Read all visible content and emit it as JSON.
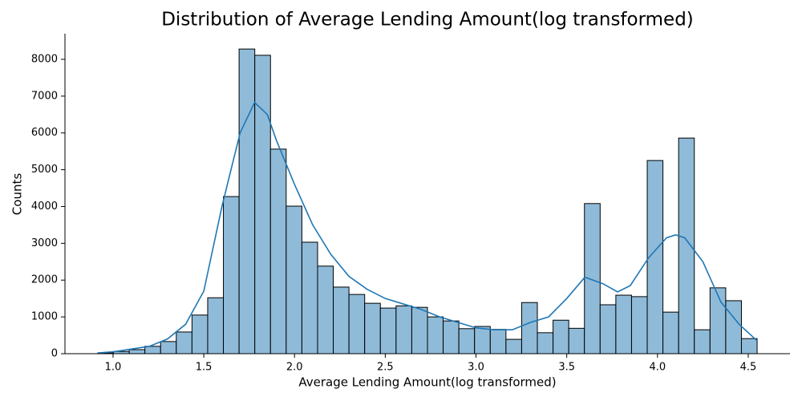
{
  "chart_data": {
    "type": "histogram",
    "title": "Distribution of Average Lending Amount(log transformed)",
    "x_label": "Average Lending Amount(log transformed)",
    "y_label": "Counts",
    "bins": [
      0.916,
      1.0025,
      1.089,
      1.1755,
      1.262,
      1.3485,
      1.435,
      1.5215,
      1.608,
      1.6945,
      1.781,
      1.8675,
      1.954,
      2.0405,
      2.127,
      2.2135,
      2.3,
      2.3865,
      2.473,
      2.5595,
      2.646,
      2.7325,
      2.819,
      2.9055,
      2.992,
      3.0785,
      3.165,
      3.2515,
      3.338,
      3.4245,
      3.511,
      3.5975,
      3.684,
      3.7705,
      3.857,
      3.9435,
      4.03,
      4.1165,
      4.203,
      4.2895,
      4.376,
      4.4625,
      4.549
    ],
    "values": [
      20,
      60,
      110,
      200,
      330,
      590,
      1050,
      1520,
      4270,
      8280,
      8110,
      5560,
      4010,
      3030,
      2380,
      1810,
      1610,
      1370,
      1240,
      1300,
      1260,
      1000,
      890,
      680,
      740,
      660,
      390,
      1390,
      570,
      910,
      690,
      4080,
      1330,
      1590,
      1550,
      5250,
      1130,
      5860,
      650,
      1790,
      1440,
      410
    ],
    "color": "#8fbbd9",
    "edge_color": "#000000",
    "kde": {
      "color": "#1f77b4",
      "x": [
        0.916,
        1.0,
        1.2,
        1.3,
        1.4,
        1.5,
        1.6,
        1.7,
        1.78,
        1.85,
        1.9,
        2.0,
        2.1,
        2.2,
        2.3,
        2.4,
        2.5,
        2.6,
        2.7,
        2.8,
        2.9,
        3.0,
        3.1,
        3.2,
        3.3,
        3.4,
        3.5,
        3.6,
        3.7,
        3.78,
        3.85,
        3.95,
        4.05,
        4.1,
        4.15,
        4.25,
        4.35,
        4.45,
        4.549
      ],
      "values": [
        20,
        50,
        200,
        400,
        800,
        1700,
        4000,
        6000,
        6830,
        6500,
        5800,
        4600,
        3500,
        2700,
        2100,
        1750,
        1500,
        1350,
        1200,
        1000,
        850,
        700,
        650,
        650,
        850,
        1000,
        1500,
        2080,
        1900,
        1680,
        1850,
        2600,
        3150,
        3230,
        3150,
        2500,
        1400,
        800,
        350
      ]
    },
    "xlim": [
      0.735,
      4.73
    ],
    "ylim": [
      0,
      8697
    ],
    "xticks": [
      {
        "value": 1,
        "label": "1.0"
      },
      1.5,
      {
        "value": 2,
        "label": "2.0"
      },
      2.5,
      {
        "value": 3,
        "label": "3.0"
      },
      3.5,
      {
        "value": 4,
        "label": "4.0"
      },
      4.5
    ],
    "yticks": [
      0,
      1000,
      2000,
      3000,
      4000,
      5000,
      6000,
      7000,
      8000
    ],
    "grid": false
  }
}
